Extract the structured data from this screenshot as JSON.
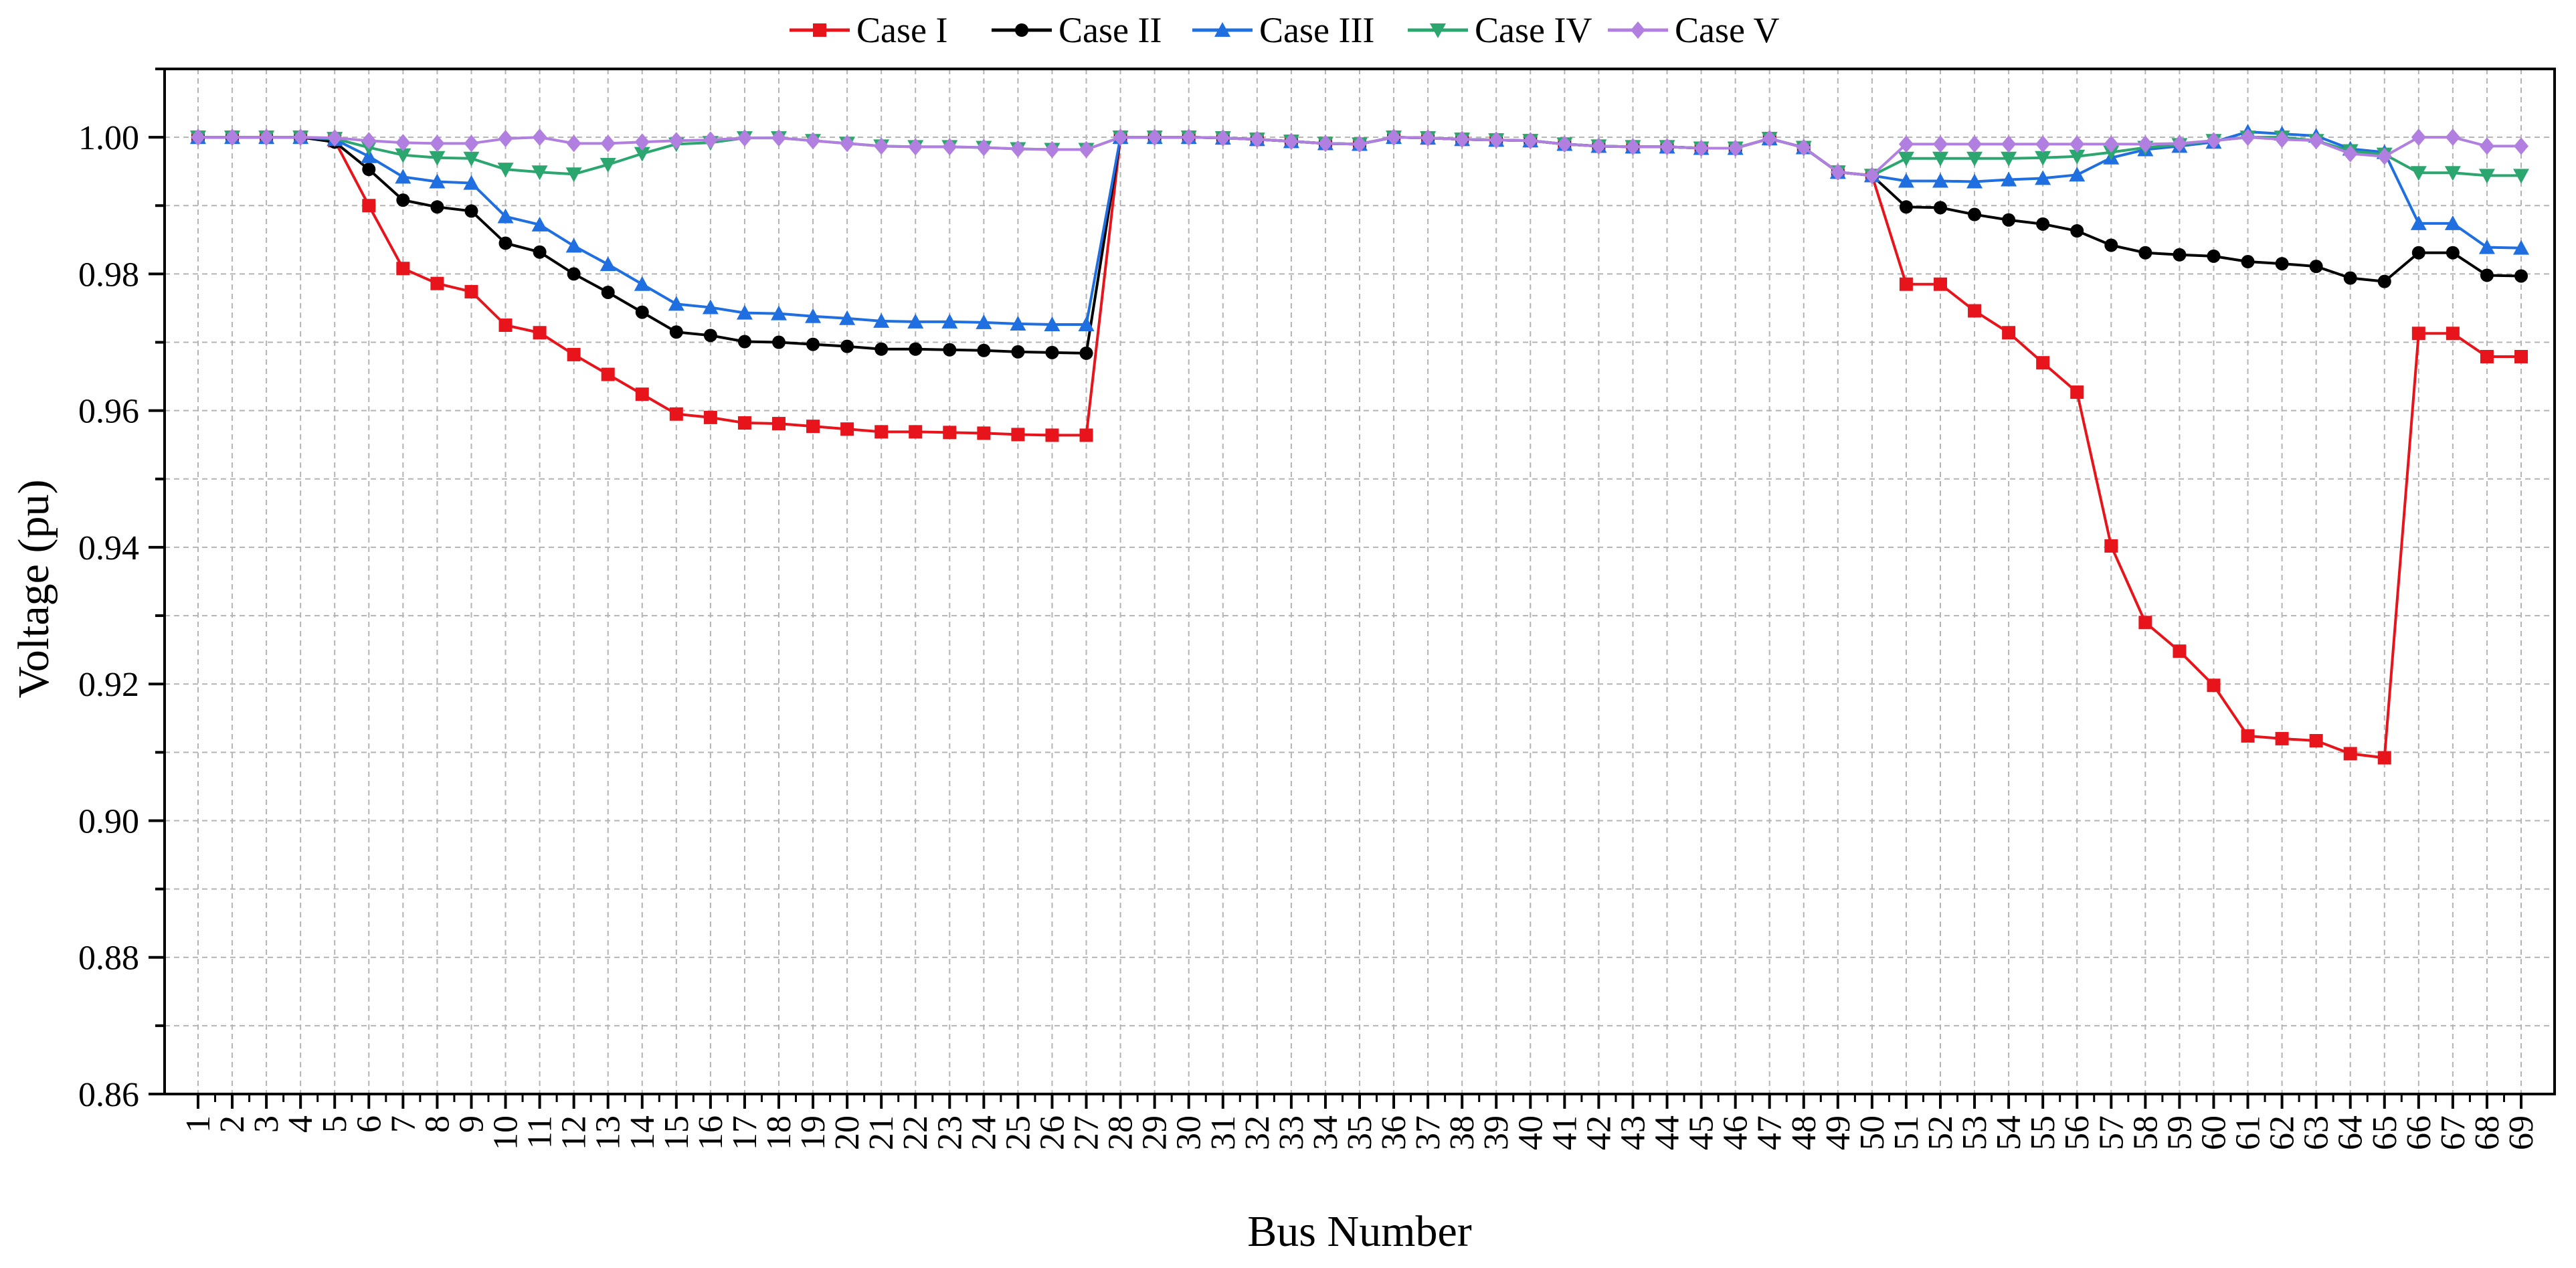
{
  "chart_data": {
    "type": "line",
    "title": "",
    "xlabel": "Bus Number",
    "ylabel": "Voltage (pu)",
    "ylim": [
      0.86,
      1.01
    ],
    "yticks": [
      "0.86",
      "0.88",
      "0.90",
      "0.92",
      "0.94",
      "0.96",
      "0.98",
      "1.00"
    ],
    "grid": true,
    "legend_position": "top-center",
    "x": [
      1,
      2,
      3,
      4,
      5,
      6,
      7,
      8,
      9,
      10,
      11,
      12,
      13,
      14,
      15,
      16,
      17,
      18,
      19,
      20,
      21,
      22,
      23,
      24,
      25,
      26,
      27,
      28,
      29,
      30,
      31,
      32,
      33,
      34,
      35,
      36,
      37,
      38,
      39,
      40,
      41,
      42,
      43,
      44,
      45,
      46,
      47,
      48,
      49,
      50,
      51,
      52,
      53,
      54,
      55,
      56,
      57,
      58,
      59,
      60,
      61,
      62,
      63,
      64,
      65,
      66,
      67,
      68,
      69
    ],
    "series": [
      {
        "name": "Case I",
        "color": "#e8141b",
        "marker": "square",
        "values": [
          1.0,
          1.0,
          1.0,
          1.0,
          0.9995,
          0.99,
          0.9808,
          0.9786,
          0.9774,
          0.9725,
          0.9714,
          0.9682,
          0.9653,
          0.9624,
          0.9595,
          0.959,
          0.9582,
          0.9581,
          0.9577,
          0.9573,
          0.9569,
          0.9569,
          0.9568,
          0.9567,
          0.9565,
          0.9564,
          0.9564,
          1.0,
          1.0,
          1.0,
          0.9999,
          0.9997,
          0.9994,
          0.9991,
          0.999,
          1.0,
          0.9999,
          0.9997,
          0.9996,
          0.9995,
          0.999,
          0.9987,
          0.9986,
          0.9986,
          0.9984,
          0.9984,
          0.9998,
          0.9985,
          0.9949,
          0.9944,
          0.9785,
          0.9785,
          0.9746,
          0.9714,
          0.967,
          0.9627,
          0.9402,
          0.929,
          0.9248,
          0.9198,
          0.9124,
          0.912,
          0.9117,
          0.9098,
          0.9092,
          0.9713,
          0.9713,
          0.9679,
          0.9679
        ]
      },
      {
        "name": "Case II",
        "color": "#000000",
        "marker": "circle",
        "values": [
          1.0,
          1.0,
          1.0,
          1.0,
          0.9993,
          0.9953,
          0.9908,
          0.9898,
          0.9892,
          0.9845,
          0.9832,
          0.98,
          0.9773,
          0.9744,
          0.9715,
          0.971,
          0.9701,
          0.97,
          0.9697,
          0.9694,
          0.969,
          0.969,
          0.9689,
          0.9688,
          0.9686,
          0.9685,
          0.9684,
          1.0,
          1.0,
          1.0,
          0.9999,
          0.9997,
          0.9994,
          0.9991,
          0.999,
          1.0,
          0.9999,
          0.9997,
          0.9996,
          0.9995,
          0.999,
          0.9987,
          0.9986,
          0.9986,
          0.9984,
          0.9984,
          0.9998,
          0.9985,
          0.9949,
          0.9944,
          0.9898,
          0.9897,
          0.9887,
          0.9879,
          0.9873,
          0.9863,
          0.9842,
          0.9831,
          0.9828,
          0.9826,
          0.9818,
          0.9815,
          0.9811,
          0.9794,
          0.9789,
          0.9831,
          0.9831,
          0.9798,
          0.9797
        ]
      },
      {
        "name": "Case III",
        "color": "#1f6fe0",
        "marker": "triangle-up",
        "values": [
          1.0,
          1.0,
          1.0,
          1.0,
          0.9997,
          0.9972,
          0.9942,
          0.9935,
          0.9933,
          0.9884,
          0.9872,
          0.9841,
          0.9814,
          0.9785,
          0.9756,
          0.9751,
          0.9743,
          0.9742,
          0.9738,
          0.9735,
          0.9731,
          0.973,
          0.973,
          0.9729,
          0.9727,
          0.9726,
          0.9726,
          1.0,
          1.0,
          1.0,
          0.9999,
          0.9997,
          0.9994,
          0.9991,
          0.999,
          1.0,
          0.9999,
          0.9997,
          0.9996,
          0.9995,
          0.999,
          0.9987,
          0.9986,
          0.9986,
          0.9984,
          0.9984,
          0.9998,
          0.9985,
          0.9949,
          0.9944,
          0.9936,
          0.9936,
          0.9935,
          0.9938,
          0.994,
          0.9945,
          0.997,
          0.9982,
          0.9987,
          0.9993,
          1.0008,
          1.0005,
          1.0002,
          0.9983,
          0.9978,
          0.9874,
          0.9874,
          0.9839,
          0.9838
        ]
      },
      {
        "name": "Case IV",
        "color": "#2aa66e",
        "marker": "triangle-down",
        "values": [
          1.0,
          1.0,
          1.0,
          1.0,
          0.9998,
          0.9985,
          0.9974,
          0.997,
          0.9969,
          0.9953,
          0.9949,
          0.9946,
          0.996,
          0.9976,
          0.999,
          0.9992,
          0.9999,
          0.9999,
          0.9995,
          0.9991,
          0.9987,
          0.9986,
          0.9986,
          0.9985,
          0.9983,
          0.9982,
          0.9982,
          1.0,
          1.0,
          1.0,
          0.9999,
          0.9997,
          0.9994,
          0.9991,
          0.999,
          1.0,
          0.9999,
          0.9997,
          0.9996,
          0.9995,
          0.999,
          0.9987,
          0.9986,
          0.9986,
          0.9984,
          0.9984,
          0.9998,
          0.9985,
          0.9949,
          0.9944,
          0.9969,
          0.9969,
          0.9969,
          0.9969,
          0.997,
          0.9972,
          0.9978,
          0.9985,
          0.9989,
          0.9995,
          1.0,
          1.0,
          0.9995,
          0.998,
          0.9975,
          0.9948,
          0.9948,
          0.9944,
          0.9944
        ]
      },
      {
        "name": "Case V",
        "color": "#b07fe0",
        "marker": "diamond",
        "values": [
          1.0,
          1.0,
          1.0,
          1.0,
          0.9999,
          0.9995,
          0.9992,
          0.9991,
          0.9991,
          0.9998,
          1.0,
          0.9991,
          0.9991,
          0.9993,
          0.9995,
          0.9996,
          0.9999,
          0.9999,
          0.9995,
          0.9991,
          0.9987,
          0.9986,
          0.9986,
          0.9985,
          0.9983,
          0.9982,
          0.9982,
          1.0,
          1.0,
          1.0,
          0.9999,
          0.9997,
          0.9994,
          0.9991,
          0.999,
          1.0,
          0.9999,
          0.9997,
          0.9996,
          0.9995,
          0.999,
          0.9987,
          0.9986,
          0.9986,
          0.9984,
          0.9984,
          0.9998,
          0.9985,
          0.9949,
          0.9944,
          0.999,
          0.999,
          0.999,
          0.999,
          0.999,
          0.999,
          0.999,
          0.999,
          0.9991,
          0.9995,
          1.0,
          0.9997,
          0.9995,
          0.9976,
          0.9972,
          1.0,
          1.0,
          0.9987,
          0.9987
        ]
      }
    ]
  }
}
